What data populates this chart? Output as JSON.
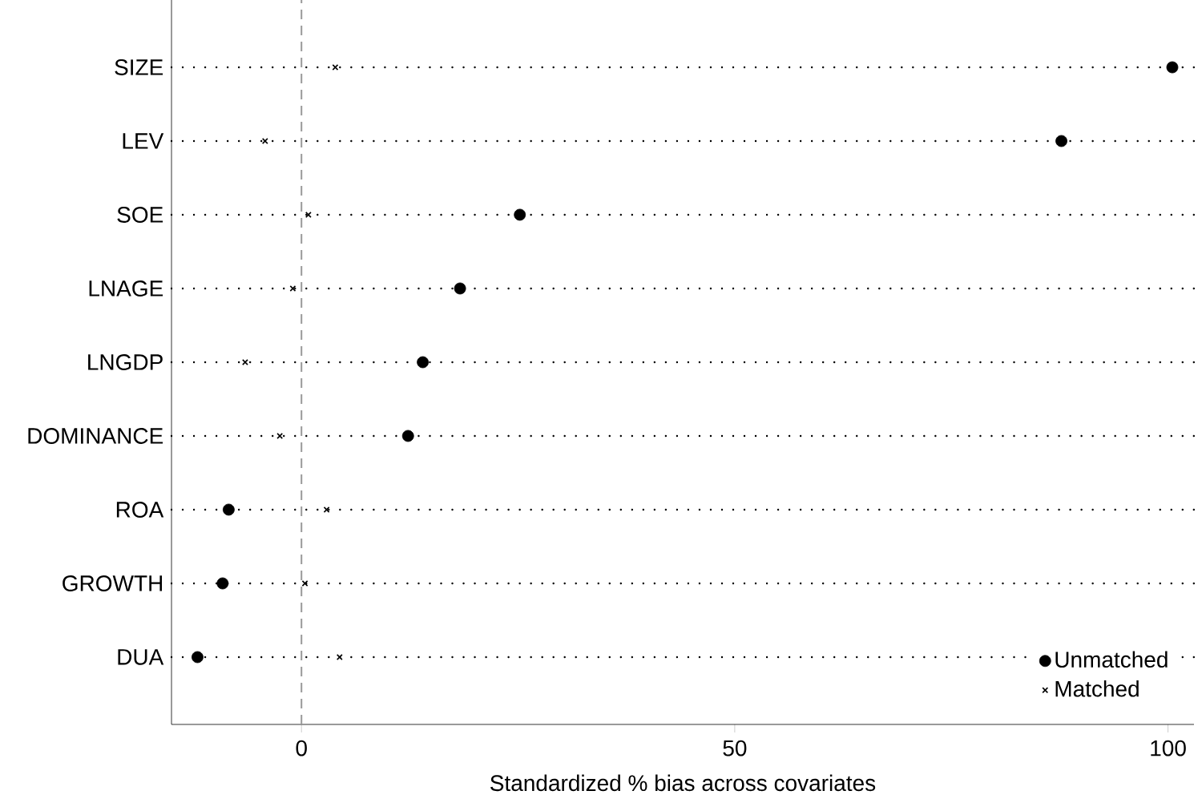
{
  "chart_data": {
    "type": "scatter",
    "orientation": "horizontal",
    "xlabel": "Standardized % bias across covariates",
    "categories": [
      "SIZE",
      "LEV",
      "SOE",
      "LNAGE",
      "LNGDP",
      "DOMINANCE",
      "ROA",
      "GROWTH",
      "DUA"
    ],
    "series": [
      {
        "name": "Unmatched",
        "color": "#000000",
        "marker": "circle",
        "values": [
          100.5,
          87.7,
          25.2,
          18.3,
          14.0,
          12.3,
          -8.4,
          -9.1,
          -12.0
        ]
      },
      {
        "name": "Matched",
        "color": "#000000",
        "marker": "cross",
        "values": [
          3.9,
          -4.2,
          0.8,
          -1.0,
          -6.5,
          -2.5,
          2.9,
          0.4,
          4.4
        ]
      }
    ],
    "xlim": [
      -15,
      103
    ],
    "xticks": [
      0,
      50,
      100
    ],
    "grid": "y",
    "legend": "bottom right",
    "ref_lines": [
      {
        "axis": "x",
        "value": 0,
        "color": "#999999",
        "line_style": "dashed"
      }
    ]
  }
}
